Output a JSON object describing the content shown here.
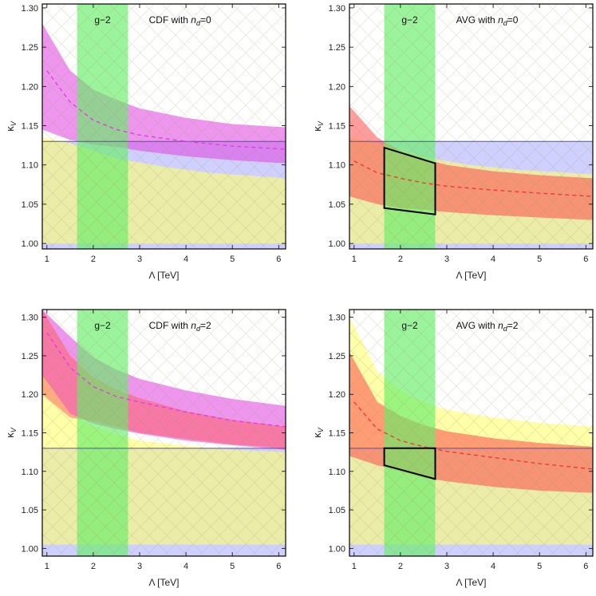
{
  "chart_data": [
    {
      "type": "area",
      "title": "CDF with n_d=0",
      "annotation": {
        "prefix": "CDF with ",
        "var": "n",
        "sub": "d",
        "suffix": "=0"
      },
      "band_label": "g−2",
      "xlabel": "Λ [TeV]",
      "ylabel": "κ",
      "ylabel_sub": "V",
      "xlim": [
        0.9,
        6.15
      ],
      "ylim": [
        0.993,
        1.305
      ],
      "xticks": [
        "1",
        "2",
        "3",
        "4",
        "5",
        "6"
      ],
      "yticks": [
        "1.00",
        "1.05",
        "1.10",
        "1.15",
        "1.20",
        "1.25",
        "1.30"
      ],
      "g2_band": [
        1.65,
        2.75
      ],
      "blue_region": {
        "ymax": 1.13
      },
      "yellow_band": {
        "points": [
          [
            0.9,
            1.0,
            1.135
          ],
          [
            1.5,
            1.0,
            1.128
          ],
          [
            2.5,
            1.0,
            1.108
          ],
          [
            3.5,
            1.0,
            1.098
          ],
          [
            4.5,
            1.0,
            1.09
          ],
          [
            6.15,
            1.0,
            1.083
          ]
        ]
      },
      "main_band": {
        "color": "#e040e0",
        "points": [
          [
            0.9,
            1.145,
            1.28
          ],
          [
            1.5,
            1.132,
            1.22
          ],
          [
            2.0,
            1.126,
            1.196
          ],
          [
            2.5,
            1.123,
            1.183
          ],
          [
            3.0,
            1.118,
            1.172
          ],
          [
            4.0,
            1.111,
            1.16
          ],
          [
            5.0,
            1.106,
            1.152
          ],
          [
            6.15,
            1.102,
            1.148
          ]
        ]
      },
      "central_line": {
        "color": "#e040e0",
        "points": [
          [
            1.0,
            1.22
          ],
          [
            1.5,
            1.18
          ],
          [
            2.0,
            1.157
          ],
          [
            2.5,
            1.145
          ],
          [
            3.0,
            1.138
          ],
          [
            4.0,
            1.13
          ],
          [
            5.0,
            1.124
          ],
          [
            6.15,
            1.12
          ]
        ]
      },
      "box": null
    },
    {
      "type": "area",
      "title": "AVG with n_d=0",
      "annotation": {
        "prefix": "AVG with ",
        "var": "n",
        "sub": "d",
        "suffix": "=0"
      },
      "band_label": "g−2",
      "xlabel": "Λ [TeV]",
      "ylabel": "κ",
      "ylabel_sub": "V",
      "xlim": [
        0.9,
        6.15
      ],
      "ylim": [
        0.993,
        1.305
      ],
      "xticks": [
        "1",
        "2",
        "3",
        "4",
        "5",
        "6"
      ],
      "yticks": [
        "1.00",
        "1.05",
        "1.10",
        "1.15",
        "1.20",
        "1.25",
        "1.30"
      ],
      "g2_band": [
        1.65,
        2.75
      ],
      "blue_region": {
        "ymax": 1.13
      },
      "yellow_band": {
        "points": [
          [
            0.9,
            1.0,
            1.135
          ],
          [
            1.5,
            1.0,
            1.128
          ],
          [
            2.5,
            1.0,
            1.11
          ],
          [
            3.5,
            1.0,
            1.1
          ],
          [
            4.5,
            1.0,
            1.094
          ],
          [
            6.15,
            1.0,
            1.088
          ]
        ]
      },
      "main_band": {
        "color": "#ff4a4a",
        "points": [
          [
            0.9,
            1.06,
            1.175
          ],
          [
            1.5,
            1.05,
            1.135
          ],
          [
            2.0,
            1.045,
            1.118
          ],
          [
            2.5,
            1.043,
            1.108
          ],
          [
            3.0,
            1.04,
            1.1
          ],
          [
            4.0,
            1.036,
            1.092
          ],
          [
            5.0,
            1.033,
            1.087
          ],
          [
            6.15,
            1.03,
            1.083
          ]
        ]
      },
      "central_line": {
        "color": "#ee3a3a",
        "points": [
          [
            1.0,
            1.105
          ],
          [
            1.5,
            1.09
          ],
          [
            2.0,
            1.083
          ],
          [
            2.5,
            1.077
          ],
          [
            3.0,
            1.073
          ],
          [
            4.0,
            1.068
          ],
          [
            5.0,
            1.064
          ],
          [
            6.15,
            1.06
          ]
        ]
      },
      "box": [
        [
          1.65,
          1.045
        ],
        [
          1.65,
          1.122
        ],
        [
          2.75,
          1.102
        ],
        [
          2.75,
          1.037
        ]
      ]
    },
    {
      "type": "area",
      "title": "CDF with n_d=2",
      "annotation": {
        "prefix": "CDF with ",
        "var": "n",
        "sub": "d",
        "suffix": "=2"
      },
      "band_label": "g−2",
      "xlabel": "Λ [TeV]",
      "ylabel": "κ",
      "ylabel_sub": "V",
      "xlim": [
        0.9,
        6.15
      ],
      "ylim": [
        0.99,
        1.31
      ],
      "xticks": [
        "1",
        "2",
        "3",
        "4",
        "5",
        "6"
      ],
      "yticks": [
        "1.00",
        "1.05",
        "1.10",
        "1.15",
        "1.20",
        "1.25",
        "1.30"
      ],
      "g2_band": [
        1.65,
        2.75
      ],
      "blue_region": {
        "ymax": 1.13
      },
      "yellow_band": {
        "points": [
          [
            0.9,
            1.005,
            1.225
          ],
          [
            1.5,
            1.005,
            1.175
          ],
          [
            2.0,
            1.005,
            1.158
          ],
          [
            2.5,
            1.005,
            1.148
          ],
          [
            3.0,
            1.005,
            1.14
          ],
          [
            4.0,
            1.005,
            1.133
          ],
          [
            5.0,
            1.005,
            1.128
          ],
          [
            6.15,
            1.005,
            1.125
          ]
        ]
      },
      "main_band": {
        "color": "#e040e0",
        "points": [
          [
            0.9,
            1.225,
            1.31
          ],
          [
            1.5,
            1.175,
            1.275
          ],
          [
            2.0,
            1.162,
            1.248
          ],
          [
            2.5,
            1.155,
            1.232
          ],
          [
            3.0,
            1.149,
            1.22
          ],
          [
            4.0,
            1.14,
            1.205
          ],
          [
            5.0,
            1.134,
            1.194
          ],
          [
            6.15,
            1.128,
            1.185
          ]
        ]
      },
      "red_band": {
        "color": "#ff5a5a",
        "points": [
          [
            0.9,
            1.2,
            1.31
          ],
          [
            1.5,
            1.17,
            1.25
          ],
          [
            2.0,
            1.165,
            1.222
          ],
          [
            2.5,
            1.158,
            1.206
          ],
          [
            3.0,
            1.15,
            1.195
          ],
          [
            4.0,
            1.142,
            1.178
          ],
          [
            5.0,
            1.135,
            1.167
          ],
          [
            6.15,
            1.13,
            1.158
          ]
        ]
      },
      "central_line": {
        "color": "#e040e0",
        "points": [
          [
            1.0,
            1.28
          ],
          [
            1.5,
            1.235
          ],
          [
            2.0,
            1.21
          ],
          [
            2.5,
            1.197
          ],
          [
            3.0,
            1.19
          ],
          [
            4.0,
            1.177
          ],
          [
            5.0,
            1.166
          ],
          [
            6.15,
            1.158
          ]
        ]
      },
      "box": null
    },
    {
      "type": "area",
      "title": "AVG with n_d=2",
      "annotation": {
        "prefix": "AVG with ",
        "var": "n",
        "sub": "d",
        "suffix": "=2"
      },
      "band_label": "g−2",
      "xlabel": "Λ [TeV]",
      "ylabel": "κ",
      "ylabel_sub": "V",
      "xlim": [
        0.9,
        6.15
      ],
      "ylim": [
        0.99,
        1.31
      ],
      "xticks": [
        "1",
        "2",
        "3",
        "4",
        "5",
        "6"
      ],
      "yticks": [
        "1.00",
        "1.05",
        "1.10",
        "1.15",
        "1.20",
        "1.25",
        "1.30"
      ],
      "g2_band": [
        1.65,
        2.75
      ],
      "blue_region": {
        "ymax": 1.13
      },
      "yellow_band": {
        "points": [
          [
            0.9,
            1.005,
            1.3
          ],
          [
            1.5,
            1.005,
            1.23
          ],
          [
            2.0,
            1.005,
            1.205
          ],
          [
            2.5,
            1.005,
            1.19
          ],
          [
            3.0,
            1.005,
            1.18
          ],
          [
            4.0,
            1.005,
            1.17
          ],
          [
            5.0,
            1.005,
            1.163
          ],
          [
            6.15,
            1.005,
            1.158
          ]
        ]
      },
      "main_band": {
        "color": "#ff4a4a",
        "points": [
          [
            0.9,
            1.12,
            1.255
          ],
          [
            1.5,
            1.108,
            1.19
          ],
          [
            2.0,
            1.1,
            1.172
          ],
          [
            2.5,
            1.092,
            1.16
          ],
          [
            3.0,
            1.087,
            1.152
          ],
          [
            4.0,
            1.08,
            1.143
          ],
          [
            5.0,
            1.075,
            1.137
          ],
          [
            6.15,
            1.072,
            1.132
          ]
        ]
      },
      "central_line": {
        "color": "#ee3a3a",
        "points": [
          [
            1.0,
            1.19
          ],
          [
            1.5,
            1.155
          ],
          [
            2.0,
            1.14
          ],
          [
            2.5,
            1.132
          ],
          [
            3.0,
            1.126
          ],
          [
            4.0,
            1.118
          ],
          [
            5.0,
            1.11
          ],
          [
            6.15,
            1.103
          ]
        ]
      },
      "box": [
        [
          1.65,
          1.108
        ],
        [
          1.65,
          1.13
        ],
        [
          2.75,
          1.13
        ],
        [
          2.75,
          1.09
        ]
      ]
    }
  ]
}
